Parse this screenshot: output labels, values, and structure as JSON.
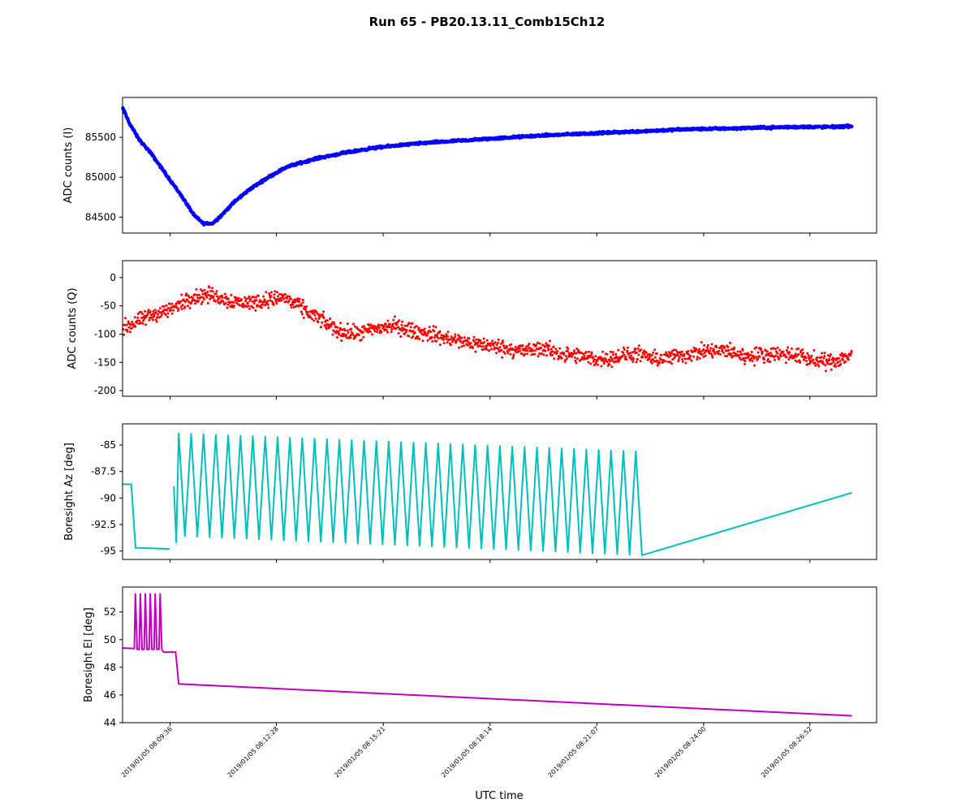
{
  "chart_data": {
    "title": "Run 65 - PB20.13.11_Comb15Ch12",
    "xlabel": "UTC time",
    "x_range": [
      "2019/01/05 08:08:19",
      "2019/01/05 08:28:40"
    ],
    "x_ticks": [
      "2019/01/05 08:09:36",
      "2019/01/05 08:12:28",
      "2019/01/05 08:15:21",
      "2019/01/05 08:18:14",
      "2019/01/05 08:21:07",
      "2019/01/05 08:24:00",
      "2019/01/05 08:26:52"
    ],
    "subplots": [
      {
        "type": "scatter",
        "ylabel": "ADC counts (I)",
        "color": "#0000ff",
        "ylim": [
          84300,
          86000
        ],
        "yticks": [
          84500,
          85000,
          85500
        ],
        "series": [
          {
            "x": [
              "08:08:19",
              "08:08:30",
              "08:08:45",
              "08:09:05",
              "08:09:30",
              "08:09:55",
              "08:10:15",
              "08:10:30",
              "08:10:45",
              "08:11:00",
              "08:11:20",
              "08:11:45",
              "08:12:15",
              "08:12:45",
              "08:13:30",
              "08:14:15",
              "08:15:00",
              "08:15:45",
              "08:16:30",
              "08:17:30",
              "08:18:30",
              "08:19:30",
              "08:20:30",
              "08:21:30",
              "08:22:30",
              "08:23:30",
              "08:24:30",
              "08:25:30",
              "08:26:30",
              "08:27:30",
              "08:28:00"
            ],
            "y": [
              85870,
              85680,
              85480,
              85300,
              85030,
              84760,
              84520,
              84420,
              84420,
              84530,
              84690,
              84850,
              85000,
              85130,
              85230,
              85300,
              85360,
              85400,
              85430,
              85460,
              85490,
              85520,
              85540,
              85560,
              85580,
              85600,
              85610,
              85620,
              85630,
              85630,
              85640
            ]
          }
        ]
      },
      {
        "type": "scatter",
        "ylabel": "ADC counts (Q)",
        "color": "#ff0000",
        "ylim": [
          -210,
          30
        ],
        "yticks": [
          0,
          -50,
          -100,
          -150,
          -200
        ],
        "series": [
          {
            "x": [
              "08:08:19",
              "08:08:40",
              "08:09:10",
              "08:09:40",
              "08:10:10",
              "08:10:40",
              "08:11:10",
              "08:11:40",
              "08:12:10",
              "08:12:40",
              "08:13:10",
              "08:13:40",
              "08:14:10",
              "08:14:40",
              "08:15:10",
              "08:15:40",
              "08:16:10",
              "08:16:40",
              "08:17:10",
              "08:17:40",
              "08:18:10",
              "08:18:40",
              "08:19:10",
              "08:19:40",
              "08:20:10",
              "08:20:40",
              "08:21:10",
              "08:21:40",
              "08:22:10",
              "08:22:40",
              "08:23:10",
              "08:23:40",
              "08:24:10",
              "08:24:40",
              "08:25:10",
              "08:25:40",
              "08:26:10",
              "08:26:40",
              "08:27:10",
              "08:27:40",
              "08:28:00"
            ],
            "y": [
              -90,
              -80,
              -65,
              -55,
              -35,
              -30,
              -40,
              -45,
              -40,
              -35,
              -55,
              -75,
              -95,
              -100,
              -90,
              -85,
              -95,
              -100,
              -110,
              -115,
              -120,
              -125,
              -130,
              -125,
              -135,
              -140,
              -145,
              -140,
              -135,
              -145,
              -140,
              -135,
              -130,
              -130,
              -140,
              -135,
              -135,
              -140,
              -150,
              -145,
              -135
            ]
          }
        ]
      },
      {
        "type": "line",
        "ylabel": "Boresight Az [deg]",
        "color": "#00bfbf",
        "ylim": [
          -95.8,
          -83.0
        ],
        "yticks": [
          -85.0,
          -87.5,
          -90.0,
          -92.5,
          -95.0
        ],
        "segments": [
          {
            "x": [
              "08:08:19",
              "08:08:33",
              "08:08:40",
              "08:09:35"
            ],
            "y": [
              -88.7,
              -88.7,
              -94.7,
              -94.8
            ]
          },
          {
            "x": [
              "08:09:42"
            ],
            "y": [
              -88.9
            ]
          }
        ],
        "scan": {
          "start": "08:09:50",
          "period_s": 20,
          "cycles": 38,
          "max_start": -83.9,
          "max_end": -85.6,
          "min_start": -93.6,
          "min_end": -95.4,
          "end": "08:28:00",
          "end_value": -89.5
        }
      },
      {
        "type": "line",
        "ylabel": "Boresight El [deg]",
        "color": "#bf00bf",
        "ylim": [
          44,
          53.8
        ],
        "yticks": [
          44,
          46,
          48,
          50,
          52
        ],
        "segments": [
          {
            "x": [
              "08:08:19",
              "08:08:37"
            ],
            "y": [
              49.4,
              49.35
            ]
          },
          {
            "x": [
              "08:09:25",
              "08:09:45",
              "08:09:50",
              "08:28:00"
            ],
            "y": [
              49.1,
              49.1,
              46.8,
              44.5
            ]
          }
        ],
        "scan": {
          "start": "08:08:37",
          "period_s": 8,
          "cycles": 6,
          "max": 53.3,
          "min": 49.3
        }
      }
    ]
  }
}
